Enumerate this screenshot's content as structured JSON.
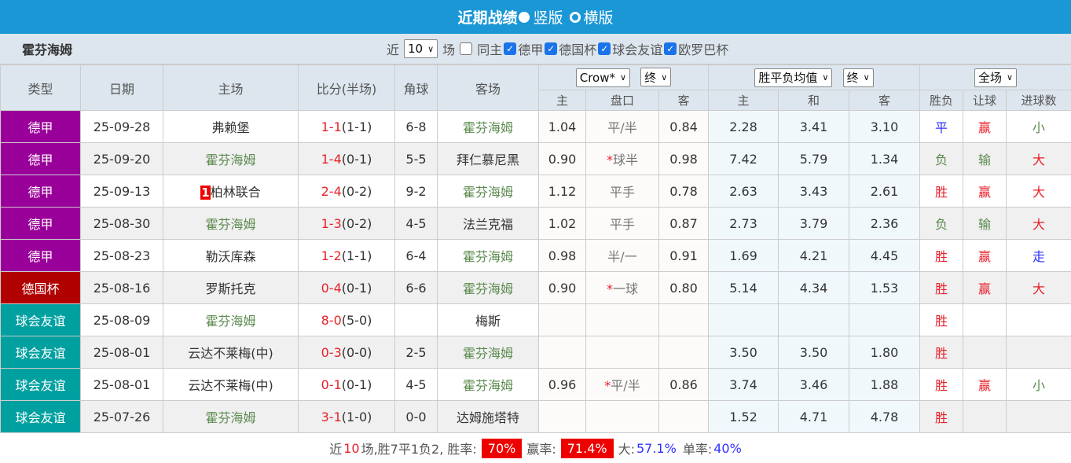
{
  "header": {
    "title": "近期战绩",
    "vertical_label": "竖版",
    "horizontal_label": "横版"
  },
  "filter": {
    "team": "霍芬海姆",
    "recent_prefix": "近",
    "recent_value": "10",
    "recent_suffix": "场",
    "checkboxes": [
      {
        "label": "同主",
        "checked": false
      },
      {
        "label": "德甲",
        "checked": true
      },
      {
        "label": "德国杯",
        "checked": true
      },
      {
        "label": "球会友谊",
        "checked": true
      },
      {
        "label": "欧罗巴杯",
        "checked": true
      }
    ]
  },
  "columns": {
    "type": "类型",
    "date": "日期",
    "home": "主场",
    "score": "比分(半场)",
    "corner": "角球",
    "away": "客场",
    "company_select": "Crow*",
    "final_select1": "终",
    "odds_select": "胜平负均值",
    "final_select2": "终",
    "period_select": "全场",
    "hc_home": "主",
    "hc_line": "盘口",
    "hc_away": "客",
    "ox_home": "主",
    "ox_draw": "和",
    "ox_away": "客",
    "res": "胜负",
    "ah": "让球",
    "ou": "进球数"
  },
  "colors": {
    "德甲": "#990099",
    "德国杯": "#b00000",
    "球会友谊": "#00a0a0",
    "highlight_team": "#5b8a4e",
    "accent": "#1b97d6"
  },
  "rows": [
    {
      "type": "德甲",
      "date": "25-09-28",
      "home": "弗赖堡",
      "home_card": "",
      "score": "1-1",
      "half": "(1-1)",
      "corner": "6-8",
      "away": "霍芬海姆",
      "hc_home": "1.04",
      "hc_star": "",
      "hc_line": "平/半",
      "hc_away": "0.84",
      "ox_home": "2.28",
      "ox_draw": "3.41",
      "ox_away": "3.10",
      "res": "平",
      "ah": "赢",
      "ou": "小"
    },
    {
      "type": "德甲",
      "date": "25-09-20",
      "home": "霍芬海姆",
      "home_card": "",
      "score": "1-4",
      "half": "(0-1)",
      "corner": "5-5",
      "away": "拜仁慕尼黑",
      "hc_home": "0.90",
      "hc_star": "*",
      "hc_line": "球半",
      "hc_away": "0.98",
      "ox_home": "7.42",
      "ox_draw": "5.79",
      "ox_away": "1.34",
      "res": "负",
      "ah": "输",
      "ou": "大"
    },
    {
      "type": "德甲",
      "date": "25-09-13",
      "home": "柏林联合",
      "home_card": "1",
      "score": "2-4",
      "half": "(0-2)",
      "corner": "9-2",
      "away": "霍芬海姆",
      "hc_home": "1.12",
      "hc_star": "",
      "hc_line": "平手",
      "hc_away": "0.78",
      "ox_home": "2.63",
      "ox_draw": "3.43",
      "ox_away": "2.61",
      "res": "胜",
      "ah": "赢",
      "ou": "大"
    },
    {
      "type": "德甲",
      "date": "25-08-30",
      "home": "霍芬海姆",
      "home_card": "",
      "score": "1-3",
      "half": "(0-2)",
      "corner": "4-5",
      "away": "法兰克福",
      "hc_home": "1.02",
      "hc_star": "",
      "hc_line": "平手",
      "hc_away": "0.87",
      "ox_home": "2.73",
      "ox_draw": "3.79",
      "ox_away": "2.36",
      "res": "负",
      "ah": "输",
      "ou": "大"
    },
    {
      "type": "德甲",
      "date": "25-08-23",
      "home": "勒沃库森",
      "home_card": "",
      "score": "1-2",
      "half": "(1-1)",
      "corner": "6-4",
      "away": "霍芬海姆",
      "hc_home": "0.98",
      "hc_star": "",
      "hc_line": "半/一",
      "hc_away": "0.91",
      "ox_home": "1.69",
      "ox_draw": "4.21",
      "ox_away": "4.45",
      "res": "胜",
      "ah": "赢",
      "ou": "走"
    },
    {
      "type": "德国杯",
      "date": "25-08-16",
      "home": "罗斯托克",
      "home_card": "",
      "score": "0-4",
      "half": "(0-1)",
      "corner": "6-6",
      "away": "霍芬海姆",
      "hc_home": "0.90",
      "hc_star": "*",
      "hc_line": "一球",
      "hc_away": "0.80",
      "ox_home": "5.14",
      "ox_draw": "4.34",
      "ox_away": "1.53",
      "res": "胜",
      "ah": "赢",
      "ou": "大"
    },
    {
      "type": "球会友谊",
      "date": "25-08-09",
      "home": "霍芬海姆",
      "home_card": "",
      "score": "8-0",
      "half": "(5-0)",
      "corner": "",
      "away": "梅斯",
      "hc_home": "",
      "hc_star": "",
      "hc_line": "",
      "hc_away": "",
      "ox_home": "",
      "ox_draw": "",
      "ox_away": "",
      "res": "胜",
      "ah": "",
      "ou": ""
    },
    {
      "type": "球会友谊",
      "date": "25-08-01",
      "home": "云达不莱梅(中)",
      "home_card": "",
      "score": "0-3",
      "half": "(0-0)",
      "corner": "2-5",
      "away": "霍芬海姆",
      "hc_home": "",
      "hc_star": "",
      "hc_line": "",
      "hc_away": "",
      "ox_home": "3.50",
      "ox_draw": "3.50",
      "ox_away": "1.80",
      "res": "胜",
      "ah": "",
      "ou": ""
    },
    {
      "type": "球会友谊",
      "date": "25-08-01",
      "home": "云达不莱梅(中)",
      "home_card": "",
      "score": "0-1",
      "half": "(0-1)",
      "corner": "4-5",
      "away": "霍芬海姆",
      "hc_home": "0.96",
      "hc_star": "*",
      "hc_line": "平/半",
      "hc_away": "0.86",
      "ox_home": "3.74",
      "ox_draw": "3.46",
      "ox_away": "1.88",
      "res": "胜",
      "ah": "赢",
      "ou": "小"
    },
    {
      "type": "球会友谊",
      "date": "25-07-26",
      "home": "霍芬海姆",
      "home_card": "",
      "score": "3-1",
      "half": "(1-0)",
      "corner": "0-0",
      "away": "达姆施塔特",
      "hc_home": "",
      "hc_star": "",
      "hc_line": "",
      "hc_away": "",
      "ox_home": "1.52",
      "ox_draw": "4.71",
      "ox_away": "4.78",
      "res": "胜",
      "ah": "",
      "ou": ""
    }
  ],
  "footer": {
    "prefix": "近",
    "count": "10",
    "summary": "场,胜7平1负2, 胜率:",
    "win_rate": "70%",
    "ah_label": "赢率:",
    "ah_rate": "71.4%",
    "over_label": "大:",
    "over_rate": "57.1%",
    "odd_label": "单率:",
    "odd_rate": "40%"
  }
}
